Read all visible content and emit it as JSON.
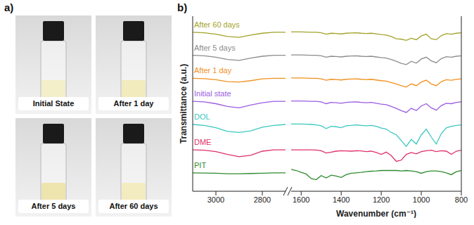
{
  "panel_a": {
    "letter": "a)",
    "photos": [
      "Initial State",
      "After 1 day",
      "After 5 days",
      "After 60 days"
    ]
  },
  "chart_data": [
    {
      "letter": "b)",
      "type": "line",
      "ylabel": "Transmittance (a.u.)",
      "tick_labels": "x",
      "xlim": [
        3100,
        2700
      ],
      "xticks": [
        3000,
        2800
      ],
      "ylim": [
        0,
        7.6
      ],
      "x": [
        3100,
        3050,
        3000,
        2950,
        2900,
        2850,
        2800,
        2750,
        2700
      ],
      "series": [
        {
          "name": "After 60 days",
          "color": "#a3a32a",
          "values": [
            6.9,
            6.88,
            6.82,
            6.72,
            6.68,
            6.78,
            6.86,
            6.9,
            6.9
          ]
        },
        {
          "name": "After 5 days",
          "color": "#8c8c8c",
          "values": [
            5.9,
            5.88,
            5.82,
            5.72,
            5.68,
            5.78,
            5.86,
            5.9,
            5.9
          ]
        },
        {
          "name": "After 1 day",
          "color": "#f0901e",
          "values": [
            4.9,
            4.89,
            4.84,
            4.76,
            4.74,
            4.8,
            4.88,
            4.9,
            4.9
          ]
        },
        {
          "name": "Initial state",
          "color": "#9b5ce0",
          "values": [
            3.9,
            3.88,
            3.8,
            3.68,
            3.62,
            3.74,
            3.84,
            3.9,
            3.9
          ]
        },
        {
          "name": "DOL",
          "color": "#3cc8c0",
          "values": [
            2.9,
            2.86,
            2.76,
            2.6,
            2.55,
            2.62,
            2.78,
            2.86,
            2.9
          ]
        },
        {
          "name": "DME",
          "color": "#e0306a",
          "values": [
            1.8,
            1.78,
            1.72,
            1.6,
            1.5,
            1.56,
            1.74,
            1.8,
            1.8
          ]
        },
        {
          "name": "PIT",
          "color": "#2e8b2e",
          "values": [
            0.8,
            0.79,
            0.78,
            0.76,
            0.76,
            0.77,
            0.78,
            0.8,
            0.8
          ]
        }
      ]
    },
    {
      "type": "line",
      "xlabel": "Wavenumber (cm⁻¹)",
      "tick_labels": "x",
      "xlim": [
        1650,
        800
      ],
      "xticks": [
        1600,
        1400,
        1200,
        1000,
        800
      ],
      "ylim": [
        0,
        7.6
      ],
      "x": [
        1650,
        1625,
        1600,
        1575,
        1550,
        1525,
        1500,
        1475,
        1450,
        1425,
        1400,
        1375,
        1350,
        1325,
        1300,
        1275,
        1250,
        1225,
        1200,
        1175,
        1150,
        1125,
        1100,
        1075,
        1050,
        1025,
        1000,
        975,
        950,
        925,
        900,
        875,
        850,
        825,
        800
      ],
      "series": [
        {
          "color": "#a3a32a",
          "values": [
            6.92,
            6.92,
            6.92,
            6.91,
            6.9,
            6.9,
            6.88,
            6.82,
            6.86,
            6.85,
            6.83,
            6.86,
            6.87,
            6.88,
            6.86,
            6.85,
            6.86,
            6.83,
            6.8,
            6.78,
            6.72,
            6.62,
            6.6,
            6.55,
            6.64,
            6.58,
            6.74,
            6.82,
            6.62,
            6.58,
            6.76,
            6.84,
            6.82,
            6.86,
            6.88
          ]
        },
        {
          "color": "#8c8c8c",
          "values": [
            5.92,
            5.92,
            5.92,
            5.91,
            5.9,
            5.9,
            5.88,
            5.82,
            5.86,
            5.85,
            5.83,
            5.86,
            5.87,
            5.88,
            5.86,
            5.85,
            5.86,
            5.83,
            5.8,
            5.78,
            5.72,
            5.64,
            5.55,
            5.5,
            5.64,
            5.56,
            5.74,
            5.82,
            5.66,
            5.58,
            5.76,
            5.84,
            5.82,
            5.86,
            5.88
          ]
        },
        {
          "color": "#f0901e",
          "values": [
            4.92,
            4.92,
            4.92,
            4.91,
            4.9,
            4.9,
            4.88,
            4.82,
            4.86,
            4.85,
            4.83,
            4.86,
            4.87,
            4.88,
            4.86,
            4.85,
            4.86,
            4.83,
            4.8,
            4.78,
            4.72,
            4.66,
            4.58,
            4.52,
            4.66,
            4.58,
            4.74,
            4.82,
            4.66,
            4.58,
            4.76,
            4.84,
            4.82,
            4.86,
            4.88
          ]
        },
        {
          "color": "#9b5ce0",
          "values": [
            3.92,
            3.92,
            3.92,
            3.91,
            3.9,
            3.9,
            3.88,
            3.8,
            3.86,
            3.84,
            3.82,
            3.86,
            3.87,
            3.88,
            3.86,
            3.84,
            3.86,
            3.82,
            3.78,
            3.76,
            3.68,
            3.6,
            3.5,
            3.42,
            3.6,
            3.5,
            3.7,
            3.8,
            3.62,
            3.52,
            3.72,
            3.82,
            3.8,
            3.86,
            3.88
          ]
        },
        {
          "color": "#3cc8c0",
          "values": [
            2.92,
            2.92,
            2.92,
            2.91,
            2.9,
            2.88,
            2.84,
            2.72,
            2.82,
            2.8,
            2.76,
            2.84,
            2.86,
            2.88,
            2.86,
            2.84,
            2.86,
            2.82,
            2.74,
            2.7,
            2.55,
            2.45,
            2.2,
            1.95,
            2.25,
            2.05,
            2.45,
            2.7,
            2.35,
            2.05,
            2.5,
            2.75,
            2.82,
            2.86,
            2.88
          ]
        },
        {
          "color": "#e0306a",
          "values": [
            1.8,
            1.8,
            1.8,
            1.8,
            1.8,
            1.79,
            1.76,
            1.66,
            1.7,
            1.74,
            1.76,
            1.75,
            1.74,
            1.76,
            1.75,
            1.72,
            1.74,
            1.68,
            1.6,
            1.7,
            1.55,
            1.3,
            1.35,
            1.6,
            1.68,
            1.62,
            1.72,
            1.76,
            1.78,
            1.72,
            1.76,
            1.74,
            1.6,
            1.74,
            1.78
          ]
        },
        {
          "color": "#2e8b2e",
          "values": [
            0.95,
            0.9,
            0.82,
            0.75,
            0.55,
            0.5,
            0.68,
            0.58,
            0.7,
            0.66,
            0.6,
            0.72,
            0.78,
            0.8,
            0.82,
            0.85,
            0.87,
            0.88,
            0.9,
            0.9,
            0.9,
            0.9,
            0.88,
            0.9,
            0.88,
            0.85,
            0.78,
            0.85,
            0.88,
            0.88,
            0.85,
            0.8,
            0.72,
            0.85,
            0.9
          ]
        }
      ]
    }
  ]
}
